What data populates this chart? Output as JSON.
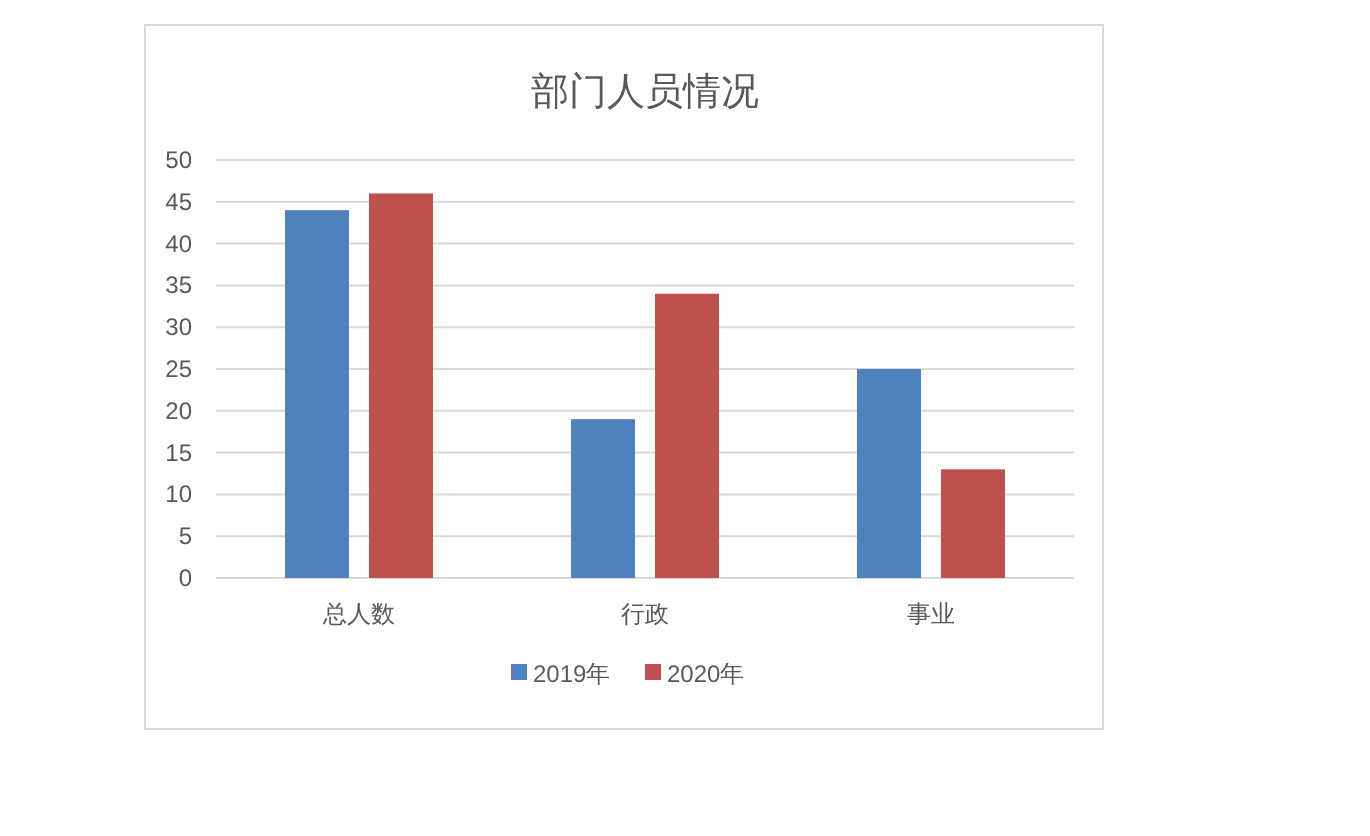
{
  "chart_data": {
    "type": "bar",
    "title": "部门人员情况",
    "categories": [
      "总人数",
      "行政",
      "事业"
    ],
    "series": [
      {
        "name": "2019年",
        "color": "#4f81bd",
        "values": [
          44,
          19,
          25
        ]
      },
      {
        "name": "2020年",
        "color": "#c0504d",
        "values": [
          46,
          34,
          13
        ]
      }
    ],
    "ylim": [
      0,
      50
    ],
    "yticks": [
      0,
      5,
      10,
      15,
      20,
      25,
      30,
      35,
      40,
      45,
      50
    ],
    "grid": "y",
    "legend": "bottom"
  }
}
